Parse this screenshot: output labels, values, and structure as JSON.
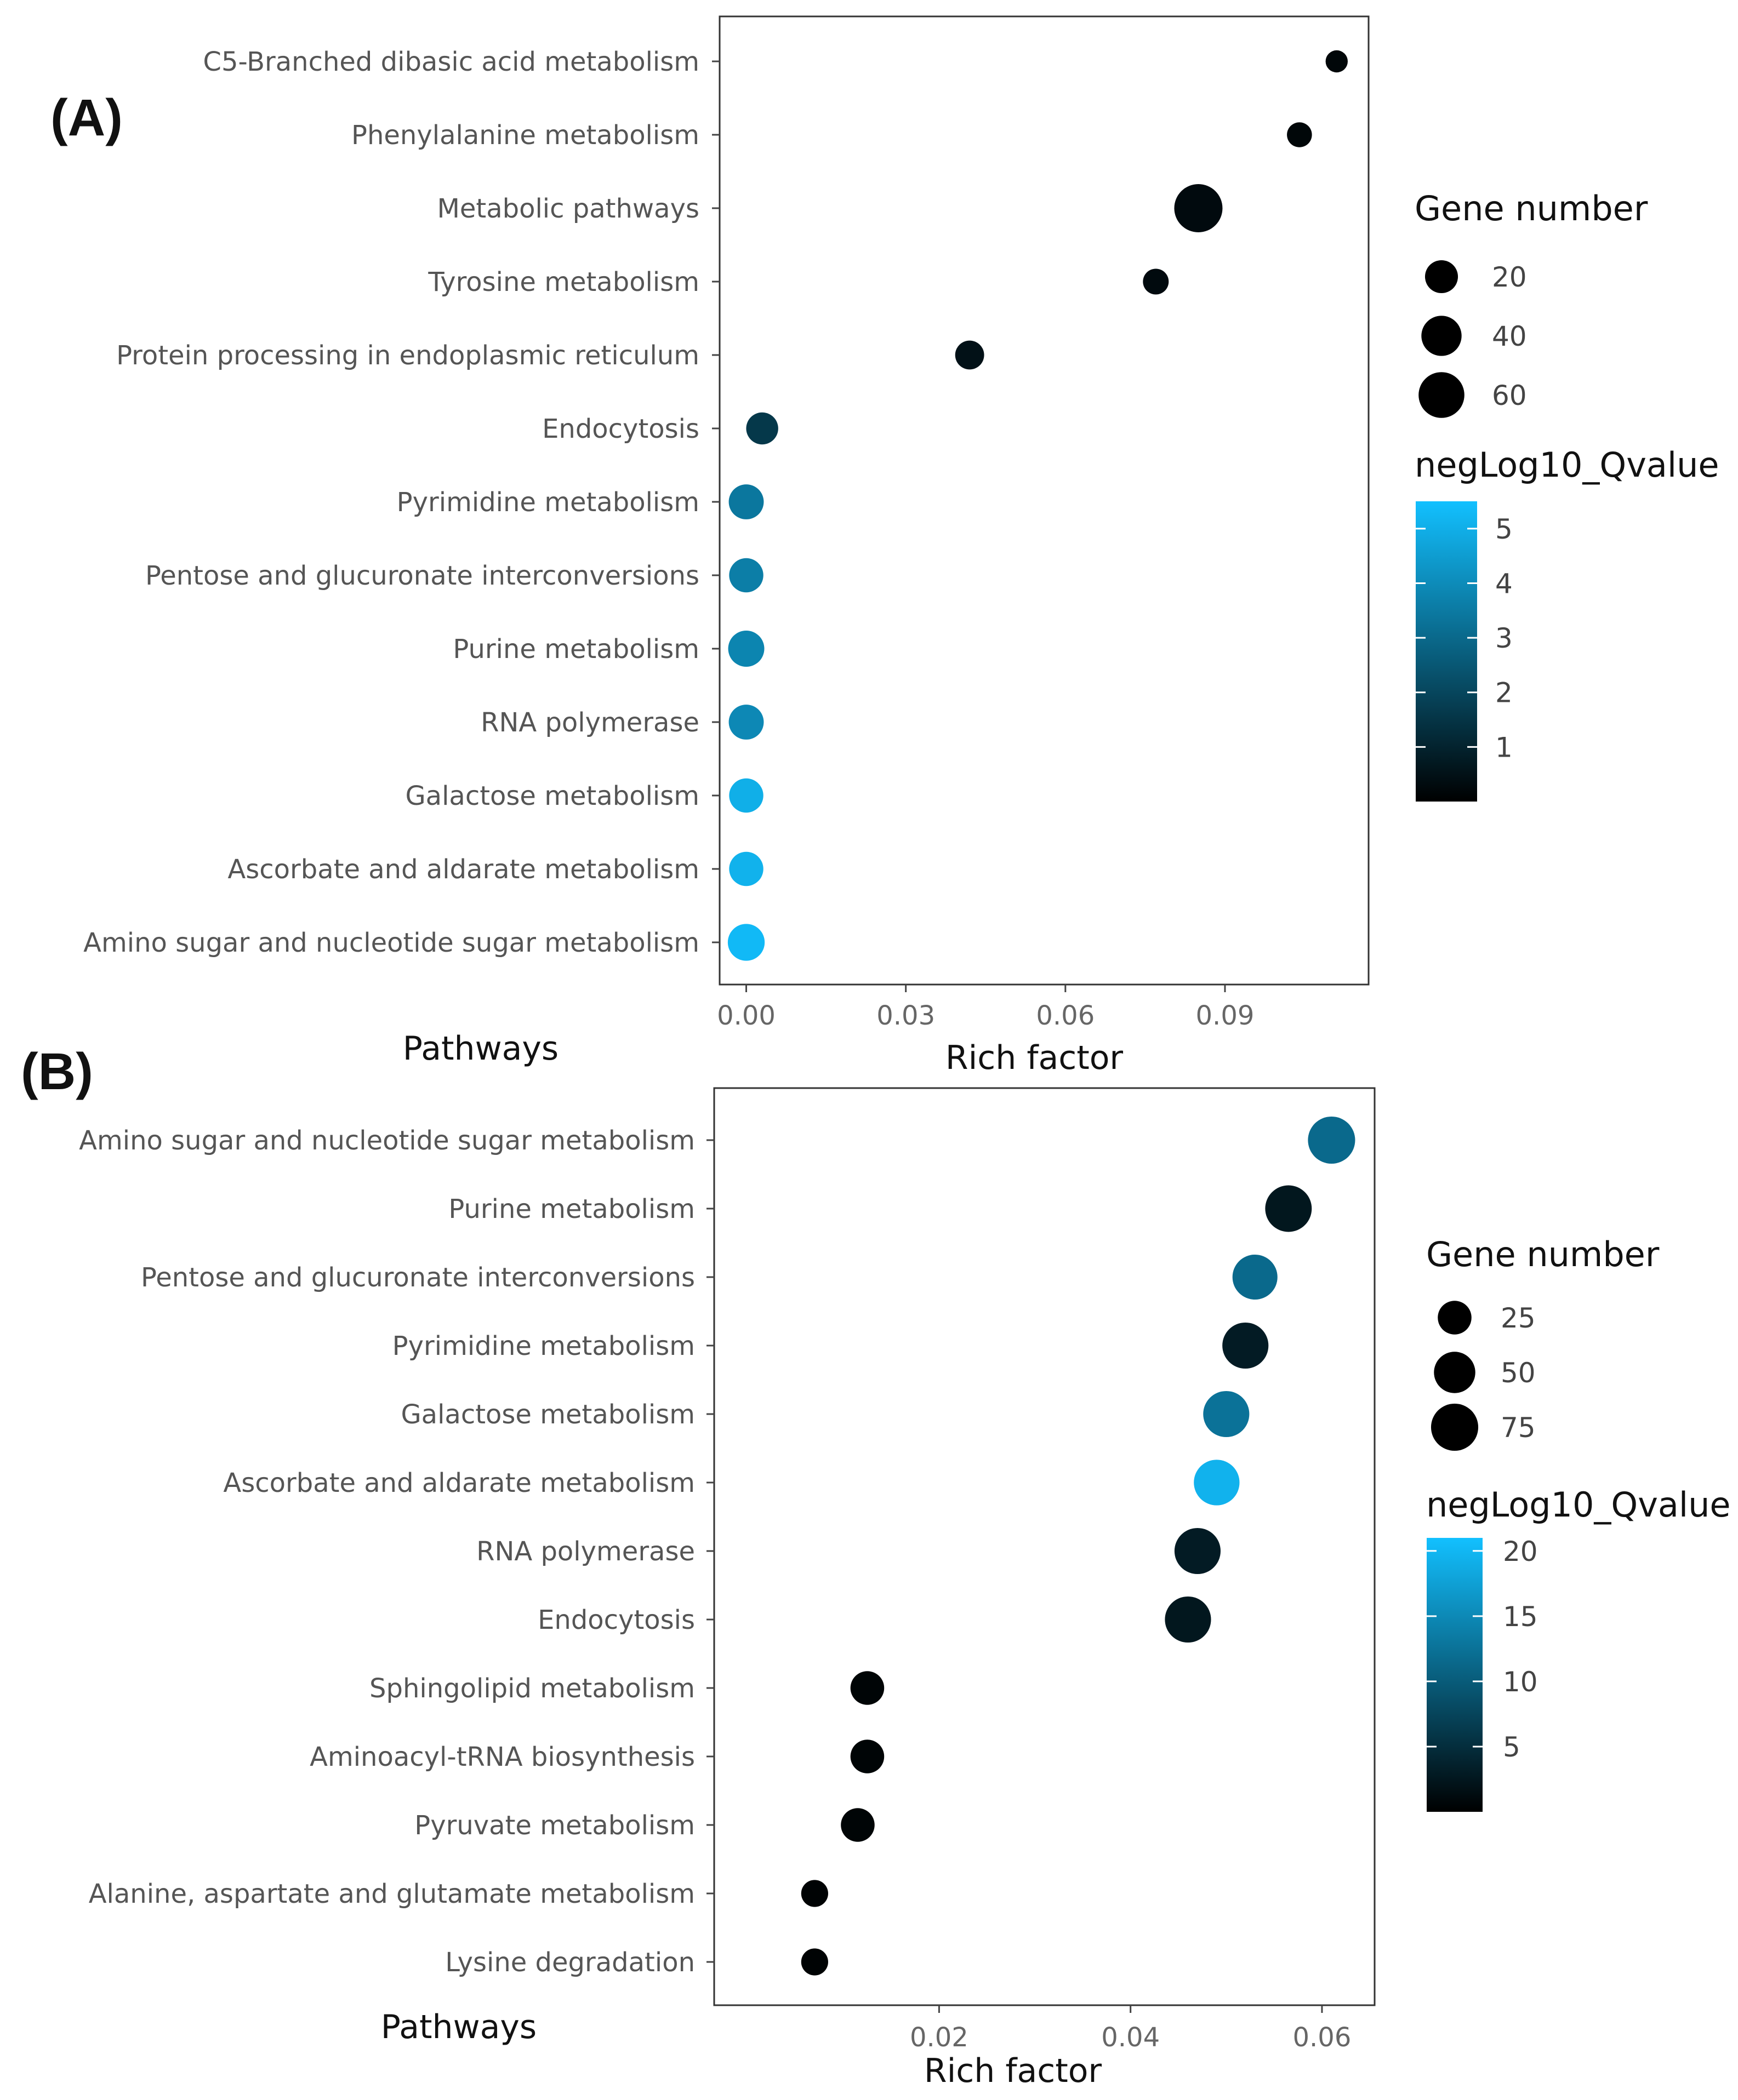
{
  "chart_data": [
    {
      "panel_label": "(A)",
      "type": "scatter",
      "xlabel": "Rich factor",
      "ylabel": "Pathways",
      "xlim": [
        -0.005,
        0.117
      ],
      "xticks": [
        0.0,
        0.03,
        0.06,
        0.09
      ],
      "xtick_labels": [
        "0.00",
        "0.03",
        "0.06",
        "0.09"
      ],
      "grid": false,
      "legend_position": "right",
      "points": [
        {
          "pathway": "C5-Branched dibasic acid metabolism",
          "rich_factor": 0.111,
          "gene_number": 3,
          "neglog10_qvalue": 0.2
        },
        {
          "pathway": "Phenylalanine metabolism",
          "rich_factor": 0.104,
          "gene_number": 6,
          "neglog10_qvalue": 0.2
        },
        {
          "pathway": "Metabolic pathways",
          "rich_factor": 0.085,
          "gene_number": 70,
          "neglog10_qvalue": 0.3
        },
        {
          "pathway": "Tyrosine metabolism",
          "rich_factor": 0.077,
          "gene_number": 7,
          "neglog10_qvalue": 0.3
        },
        {
          "pathway": "Protein processing in endoplasmic reticulum",
          "rich_factor": 0.042,
          "gene_number": 12,
          "neglog10_qvalue": 0.5
        },
        {
          "pathway": "Endocytosis",
          "rich_factor": 0.003,
          "gene_number": 18,
          "neglog10_qvalue": 1.6
        },
        {
          "pathway": "Pyrimidine metabolism",
          "rich_factor": 0.0,
          "gene_number": 25,
          "neglog10_qvalue": 3.4
        },
        {
          "pathway": "Pentose and glucuronate interconversions",
          "rich_factor": 0.0,
          "gene_number": 23,
          "neglog10_qvalue": 3.6
        },
        {
          "pathway": "Purine metabolism",
          "rich_factor": 0.0,
          "gene_number": 28,
          "neglog10_qvalue": 3.8
        },
        {
          "pathway": "RNA polymerase",
          "rich_factor": 0.0,
          "gene_number": 25,
          "neglog10_qvalue": 3.9
        },
        {
          "pathway": "Galactose metabolism",
          "rich_factor": 0.0,
          "gene_number": 23,
          "neglog10_qvalue": 5.0
        },
        {
          "pathway": "Ascorbate and aldarate metabolism",
          "rich_factor": 0.0,
          "gene_number": 23,
          "neglog10_qvalue": 5.1
        },
        {
          "pathway": "Amino sugar and nucleotide sugar metabolism",
          "rich_factor": 0.0,
          "gene_number": 30,
          "neglog10_qvalue": 5.3
        }
      ],
      "size_legend": {
        "title": "Gene number",
        "values": [
          20,
          40,
          60
        ]
      },
      "color_legend": {
        "title": "negLog10_Qvalue",
        "min": 0,
        "max": 5.5,
        "ticks": [
          5,
          4,
          3,
          2,
          1
        ],
        "low_color": "#000000",
        "high_color": "#12c0ff"
      }
    },
    {
      "panel_label": "(B)",
      "type": "scatter",
      "xlabel": "Rich factor",
      "ylabel": "Pathways",
      "xlim": [
        -0.0035,
        0.0655
      ],
      "xticks": [
        0.02,
        0.04,
        0.06
      ],
      "xtick_labels": [
        "0.02",
        "0.04",
        "0.06"
      ],
      "grid": false,
      "legend_position": "right",
      "points": [
        {
          "pathway": "Amino sugar and nucleotide sugar metabolism",
          "rich_factor": 0.061,
          "gene_number": 75,
          "neglog10_qvalue": 11.5
        },
        {
          "pathway": "Purine metabolism",
          "rich_factor": 0.0565,
          "gene_number": 72,
          "neglog10_qvalue": 2.5
        },
        {
          "pathway": "Pentose and glucuronate interconversions",
          "rich_factor": 0.053,
          "gene_number": 65,
          "neglog10_qvalue": 11.5
        },
        {
          "pathway": "Pyrimidine metabolism",
          "rich_factor": 0.052,
          "gene_number": 70,
          "neglog10_qvalue": 3.0
        },
        {
          "pathway": "Galactose metabolism",
          "rich_factor": 0.05,
          "gene_number": 70,
          "neglog10_qvalue": 12.5
        },
        {
          "pathway": "Ascorbate and aldarate metabolism",
          "rich_factor": 0.049,
          "gene_number": 68,
          "neglog10_qvalue": 19.5
        },
        {
          "pathway": "RNA polymerase",
          "rich_factor": 0.047,
          "gene_number": 70,
          "neglog10_qvalue": 3.0
        },
        {
          "pathway": "Endocytosis",
          "rich_factor": 0.046,
          "gene_number": 70,
          "neglog10_qvalue": 2.5
        },
        {
          "pathway": "Sphingolipid metabolism",
          "rich_factor": 0.0125,
          "gene_number": 25,
          "neglog10_qvalue": 0.5
        },
        {
          "pathway": "Aminoacyl-tRNA biosynthesis",
          "rich_factor": 0.0125,
          "gene_number": 25,
          "neglog10_qvalue": 0.5
        },
        {
          "pathway": "Pyruvate metabolism",
          "rich_factor": 0.0115,
          "gene_number": 25,
          "neglog10_qvalue": 0.5
        },
        {
          "pathway": "Alanine, aspartate and glutamate metabolism",
          "rich_factor": 0.007,
          "gene_number": 10,
          "neglog10_qvalue": 0.3
        },
        {
          "pathway": "Lysine degradation",
          "rich_factor": 0.007,
          "gene_number": 10,
          "neglog10_qvalue": 0.3
        }
      ],
      "size_legend": {
        "title": "Gene number",
        "values": [
          25,
          50,
          75
        ]
      },
      "color_legend": {
        "title": "negLog10_Qvalue",
        "min": 0,
        "max": 21,
        "ticks": [
          20,
          15,
          10,
          5
        ],
        "low_color": "#000000",
        "high_color": "#12c0ff"
      }
    }
  ]
}
